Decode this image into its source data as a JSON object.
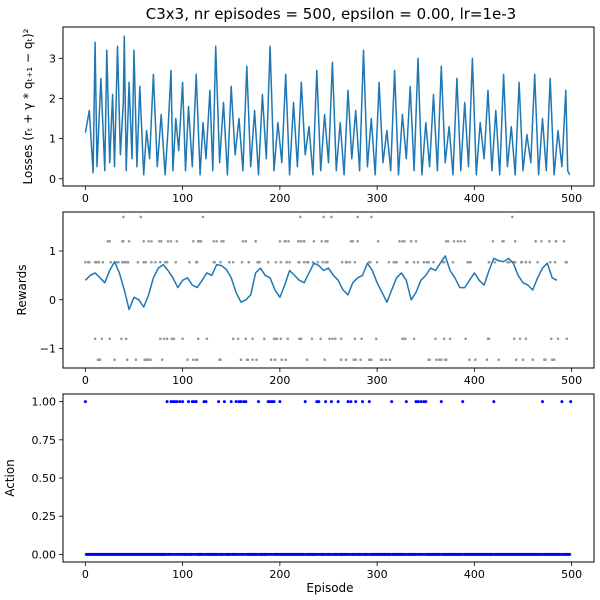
{
  "title": "C3x3, nr episodes = 500, epsilon = 0.00, lr=1e-3",
  "chart_data": [
    {
      "type": "line",
      "ylabel": "Losses (rₜ + γ * qₜ₊₁ − qₜ)²",
      "xlim": [
        -23,
        523
      ],
      "ylim": [
        -0.18,
        3.78
      ],
      "xticks": [
        0,
        100,
        200,
        300,
        400,
        500
      ],
      "yticks": [
        0,
        1,
        2,
        3
      ],
      "color": "#1f77b4",
      "series": [
        {
          "x": [
            0,
            4,
            8,
            10,
            12,
            16,
            20,
            22,
            25,
            28,
            30,
            33,
            36,
            39,
            40,
            42,
            45,
            48,
            50,
            53,
            56,
            60,
            63,
            66,
            70,
            74,
            78,
            82,
            85,
            88,
            90,
            93,
            96,
            100,
            103,
            106,
            110,
            114,
            118,
            121,
            124,
            128,
            131,
            134,
            138,
            142,
            146,
            150,
            154,
            158,
            162,
            166,
            170,
            174,
            178,
            182,
            186,
            190,
            194,
            198,
            202,
            206,
            210,
            214,
            218,
            222,
            226,
            230,
            234,
            238,
            242,
            246,
            250,
            254,
            258,
            262,
            266,
            270,
            274,
            278,
            282,
            286,
            290,
            294,
            298,
            302,
            306,
            310,
            314,
            318,
            322,
            326,
            330,
            334,
            338,
            342,
            346,
            350,
            354,
            358,
            362,
            366,
            370,
            374,
            378,
            382,
            386,
            390,
            394,
            398,
            402,
            406,
            410,
            414,
            418,
            422,
            426,
            430,
            434,
            438,
            442,
            446,
            450,
            454,
            458,
            462,
            466,
            470,
            474,
            478,
            482,
            486,
            490,
            494,
            496,
            498
          ],
          "y": [
            1.15,
            1.7,
            0.15,
            3.4,
            0.3,
            2.5,
            0.2,
            3.2,
            0.4,
            2.1,
            0.3,
            3.3,
            0.6,
            1.9,
            3.55,
            0.2,
            2.4,
            0.5,
            3.2,
            0.3,
            2.3,
            0.1,
            1.2,
            0.5,
            2.6,
            0.3,
            1.6,
            0.1,
            1.2,
            2.7,
            0.2,
            1.5,
            0.7,
            2.4,
            0.2,
            1.8,
            0.3,
            2.6,
            0.1,
            1.4,
            0.5,
            2.2,
            0.2,
            3.3,
            0.4,
            1.9,
            0.1,
            2.3,
            0.6,
            1.5,
            0.2,
            2.8,
            0.3,
            1.7,
            0.1,
            2.1,
            0.5,
            3.3,
            0.2,
            1.4,
            0.4,
            2.6,
            0.1,
            1.9,
            0.3,
            2.4,
            0.6,
            1.3,
            0.1,
            2.7,
            0.2,
            1.6,
            0.4,
            2.9,
            0.2,
            1.4,
            0.1,
            2.2,
            0.5,
            1.7,
            0.2,
            3.2,
            0.3,
            1.5,
            0.1,
            2.4,
            0.4,
            1.2,
            0.2,
            2.7,
            0.1,
            1.6,
            0.5,
            2.3,
            0.2,
            3.0,
            0.1,
            1.4,
            0.3,
            2.1,
            0.2,
            2.8,
            0.4,
            1.3,
            0.1,
            2.5,
            0.2,
            1.9,
            0.3,
            3.0,
            0.1,
            1.4,
            0.5,
            2.2,
            0.2,
            1.7,
            0.1,
            2.6,
            0.3,
            1.3,
            0.1,
            2.4,
            0.2,
            1.1,
            0.4,
            2.6,
            0.1,
            1.5,
            0.2,
            2.5,
            0.1,
            1.2,
            0.3,
            2.2,
            0.2,
            0.1
          ]
        }
      ]
    },
    {
      "type": "scatter",
      "ylabel": "Rewards",
      "xlim": [
        -23,
        523
      ],
      "ylim": [
        -1.4,
        1.8
      ],
      "xticks": [
        0,
        100,
        200,
        300,
        400,
        500
      ],
      "yticks": [
        -1,
        0,
        1
      ],
      "point_color": "#999999",
      "reward_levels": [
        1.7,
        1.2,
        0.77,
        -0.8,
        -1.23
      ],
      "level_counts": [
        9,
        70,
        100,
        50,
        60
      ],
      "series": [
        {
          "name": "moving average",
          "type": "line",
          "color": "#1f77b4",
          "x": [
            0,
            5,
            10,
            15,
            20,
            25,
            30,
            35,
            40,
            45,
            50,
            55,
            60,
            65,
            70,
            75,
            80,
            85,
            90,
            95,
            100,
            105,
            110,
            115,
            120,
            125,
            130,
            135,
            140,
            145,
            150,
            155,
            160,
            165,
            170,
            175,
            180,
            185,
            190,
            195,
            200,
            205,
            210,
            215,
            220,
            225,
            230,
            235,
            240,
            245,
            250,
            255,
            260,
            265,
            270,
            275,
            280,
            285,
            290,
            295,
            300,
            305,
            310,
            315,
            320,
            325,
            330,
            335,
            340,
            345,
            350,
            355,
            360,
            365,
            370,
            375,
            380,
            385,
            390,
            395,
            400,
            405,
            410,
            415,
            420,
            425,
            430,
            435,
            440,
            445,
            450,
            455,
            460,
            465,
            470,
            475,
            480,
            485
          ],
          "y": [
            0.4,
            0.5,
            0.55,
            0.45,
            0.35,
            0.6,
            0.78,
            0.55,
            0.2,
            -0.2,
            0.05,
            0.0,
            -0.15,
            0.1,
            0.45,
            0.65,
            0.72,
            0.6,
            0.45,
            0.25,
            0.4,
            0.45,
            0.3,
            0.25,
            0.4,
            0.55,
            0.5,
            0.72,
            0.7,
            0.62,
            0.45,
            0.15,
            -0.05,
            0.0,
            0.1,
            0.55,
            0.65,
            0.5,
            0.45,
            0.2,
            0.05,
            0.3,
            0.6,
            0.5,
            0.4,
            0.35,
            0.55,
            0.75,
            0.7,
            0.6,
            0.65,
            0.5,
            0.4,
            0.2,
            0.1,
            0.35,
            0.45,
            0.5,
            0.75,
            0.6,
            0.35,
            0.15,
            -0.05,
            0.2,
            0.45,
            0.55,
            0.4,
            0.0,
            0.15,
            0.4,
            0.5,
            0.65,
            0.6,
            0.75,
            0.9,
            0.6,
            0.45,
            0.25,
            0.25,
            0.4,
            0.55,
            0.4,
            0.3,
            0.6,
            0.85,
            0.8,
            0.78,
            0.85,
            0.75,
            0.5,
            0.35,
            0.3,
            0.2,
            0.45,
            0.65,
            0.75,
            0.45,
            0.4
          ]
        }
      ]
    },
    {
      "type": "scatter",
      "ylabel": "Action",
      "xlabel": "Episode",
      "xlim": [
        -23,
        523
      ],
      "ylim": [
        -0.05,
        1.05
      ],
      "xticks": [
        0,
        100,
        200,
        300,
        400,
        500
      ],
      "yticks": [
        0,
        0.25,
        0.5,
        0.75,
        1
      ],
      "ytick_labels": [
        "0.00",
        "0.25",
        "0.50",
        "0.75",
        "1.00"
      ],
      "color": "#0000ff",
      "action_one_episodes": [
        0,
        84,
        88,
        90,
        92,
        94,
        97,
        100,
        106,
        110,
        112,
        114,
        122,
        124,
        137,
        143,
        150,
        155,
        158,
        160,
        163,
        165,
        178,
        188,
        190,
        192,
        194,
        200,
        226,
        238,
        240,
        247,
        253,
        260,
        270,
        273,
        278,
        285,
        292,
        315,
        330,
        340,
        342,
        345,
        348,
        350,
        366,
        388,
        420,
        470,
        490,
        499
      ],
      "action_zero_range": [
        0,
        499
      ]
    }
  ]
}
